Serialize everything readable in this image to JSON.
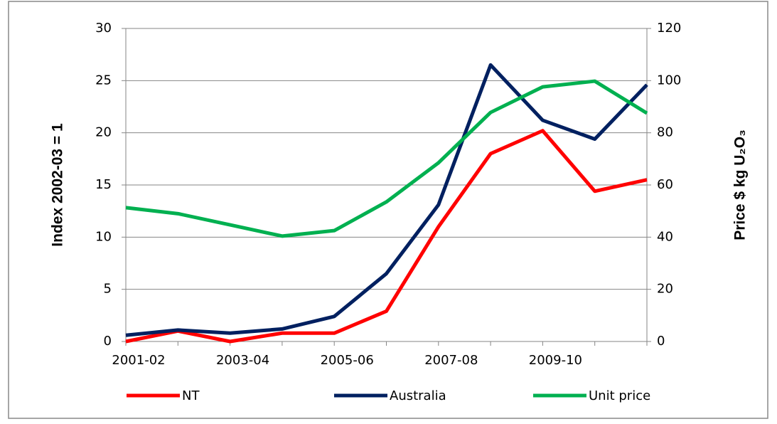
{
  "chart_data": {
    "type": "line",
    "categories": [
      "2001-02",
      null,
      "2003-04",
      null,
      "2005-06",
      null,
      "2007-08",
      null,
      "2009-10",
      null,
      null
    ],
    "y_label": "Index 2002-03 = 1",
    "y2_label": "Price $ kg U₂O₃",
    "ylim": [
      0,
      30
    ],
    "yticks": [
      0,
      5,
      10,
      15,
      20,
      25,
      30
    ],
    "y2lim": [
      0,
      120
    ],
    "y2ticks": [
      0,
      20,
      40,
      60,
      80,
      100,
      120
    ],
    "grid": true,
    "legend": "bottom",
    "series": [
      {
        "name": "NT",
        "color": "#ff0000",
        "values": [
          0,
          1.0,
          0,
          0.8,
          0.8,
          2.9,
          11.0,
          18.0,
          20.2,
          14.4,
          15.5
        ]
      },
      {
        "name": "Australia",
        "color": "#002060",
        "values": [
          0.6,
          1.1,
          0.8,
          1.2,
          2.4,
          6.5,
          13.1,
          26.5,
          21.2,
          19.4,
          24.6
        ]
      },
      {
        "name": "Unit price",
        "color": "#00b050",
        "axis": "y2",
        "values": [
          51.3,
          49.0,
          44.7,
          40.4,
          42.5,
          53.5,
          68.5,
          87.8,
          97.6,
          99.8,
          87.5
        ]
      }
    ]
  }
}
